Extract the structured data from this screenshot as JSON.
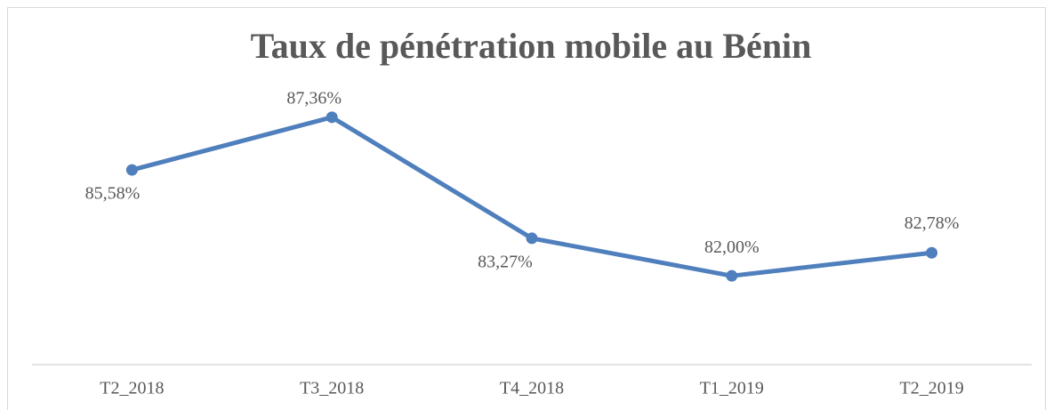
{
  "chart_data": {
    "type": "line",
    "title": "Taux de pénétration mobile au Bénin",
    "categories": [
      "T2_2018",
      "T3_2018",
      "T4_2018",
      "T1_2019",
      "T2_2019"
    ],
    "values": [
      85.58,
      87.36,
      83.27,
      82.0,
      82.78
    ],
    "value_labels": [
      "85,58%",
      "87,36%",
      "83,27%",
      "82,00%",
      "82,78%"
    ],
    "color": "#4f7fbc",
    "ylim": [
      79,
      90
    ]
  }
}
